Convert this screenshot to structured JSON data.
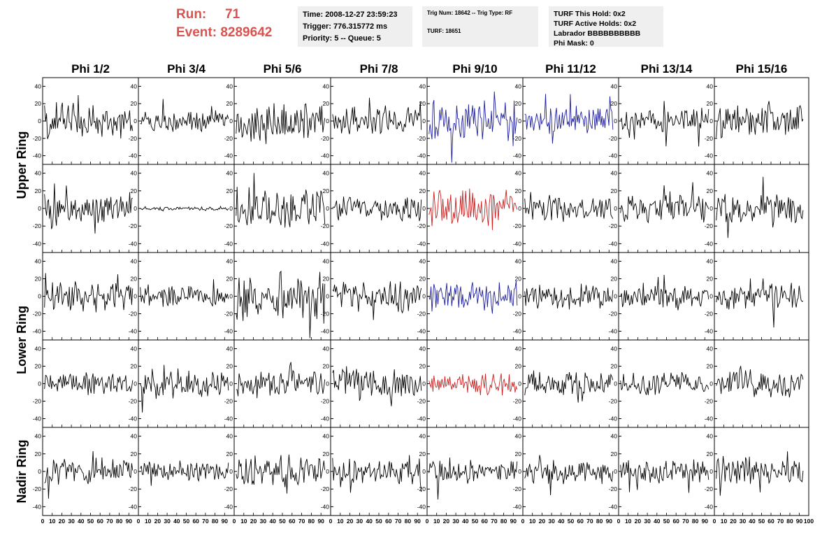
{
  "header": {
    "run_label": "Run:",
    "run_value": "71",
    "event_label": "Event:",
    "event_value": "8289642"
  },
  "info_time": {
    "time": "Time: 2008-12-27 23:59:23",
    "trigger": "Trigger: 776.315772 ms",
    "priority": "Priority: 5 -- Queue: 5"
  },
  "info_trig": {
    "trig": "Trig Num: 18642 -- Trig Type: RF",
    "turf": "TURF: 18651"
  },
  "info_turf": {
    "hold": "TURF This Hold: 0x2",
    "active": "TURF Active Holds: 0x2",
    "labrador": "Labrador BBBBBBBBBB",
    "phimask": "Phi Mask: 0"
  },
  "colors": {
    "black": "#000000",
    "blue": "#1f1f9e",
    "red": "#cc1f1f"
  },
  "chart_data": {
    "type": "line",
    "columns": [
      "Phi 1/2",
      "Phi 3/4",
      "Phi 5/6",
      "Phi 7/8",
      "Phi 9/10",
      "Phi 11/12",
      "Phi 13/14",
      "Phi 15/16"
    ],
    "ring_labels": [
      {
        "name": "Upper Ring",
        "rows": [
          0,
          1
        ]
      },
      {
        "name": "Lower Ring",
        "rows": [
          2,
          3
        ]
      },
      {
        "name": "Nadir Ring",
        "rows": [
          4
        ]
      }
    ],
    "xlim": [
      0,
      100
    ],
    "ylim": [
      -50,
      50
    ],
    "y_ticks": [
      -40,
      -20,
      0,
      20,
      40
    ],
    "x_ticks": [
      0,
      10,
      20,
      30,
      40,
      50,
      60,
      70,
      80,
      90,
      100
    ],
    "samples": 90,
    "amplitudes": [
      [
        16,
        9,
        17,
        13,
        18,
        13,
        12,
        14
      ],
      [
        12,
        2,
        18,
        11,
        16,
        11,
        12,
        14
      ],
      [
        13,
        10,
        20,
        15,
        13,
        11,
        10,
        12
      ],
      [
        10,
        13,
        12,
        14,
        10,
        12,
        10,
        13
      ],
      [
        12,
        9,
        15,
        12,
        11,
        11,
        10,
        12
      ]
    ],
    "highlight": [
      [
        "black",
        "black",
        "black",
        "black",
        "blue",
        "blue",
        "black",
        "black"
      ],
      [
        "black",
        "black",
        "black",
        "black",
        "red",
        "black",
        "black",
        "black"
      ],
      [
        "black",
        "black",
        "black",
        "black",
        "blue",
        "black",
        "black",
        "black"
      ],
      [
        "black",
        "black",
        "black",
        "black",
        "red",
        "black",
        "black",
        "black"
      ],
      [
        "black",
        "black",
        "black",
        "black",
        "black",
        "black",
        "black",
        "black"
      ]
    ]
  }
}
